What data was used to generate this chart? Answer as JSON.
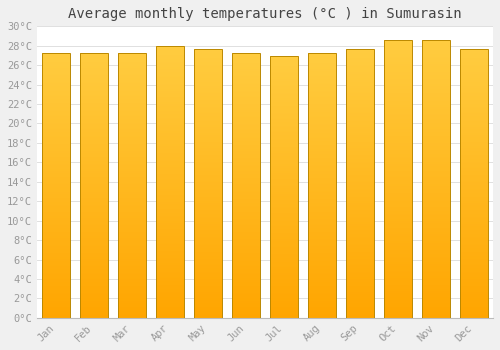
{
  "title": "Average monthly temperatures (°C ) in Sumurasin",
  "months": [
    "Jan",
    "Feb",
    "Mar",
    "Apr",
    "May",
    "Jun",
    "Jul",
    "Aug",
    "Sep",
    "Oct",
    "Nov",
    "Dec"
  ],
  "temperatures": [
    27.3,
    27.3,
    27.3,
    28.0,
    27.7,
    27.2,
    26.9,
    27.2,
    27.7,
    28.6,
    28.6,
    27.7
  ],
  "ylim": [
    0,
    30
  ],
  "ytick_max": 30,
  "ytick_step": 2,
  "bar_color_bottom": "#FFAA00",
  "bar_color_top": "#FFCC44",
  "bar_edge_color": "#BB8800",
  "background_color": "#f0f0f0",
  "plot_bg_color": "#ffffff",
  "grid_color": "#e0e0e0",
  "title_fontsize": 10,
  "tick_fontsize": 7.5,
  "tick_color": "#999999",
  "bar_width": 0.75
}
